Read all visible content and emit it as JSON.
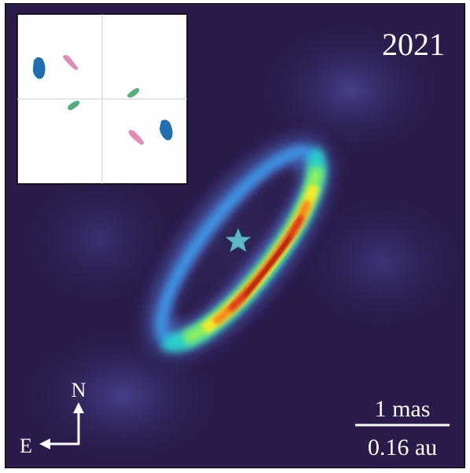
{
  "epoch_label": "2021",
  "compass": {
    "north": "N",
    "east": "E"
  },
  "scale_bar": {
    "top_label": "1 mas",
    "bottom_label": "0.16 au"
  },
  "colors": {
    "background": "#2a1b4a",
    "ring_peak": "#b0200a",
    "star": "#5bb7c9",
    "inset_blue": "#1f6fb2",
    "inset_pink": "#e08bb8",
    "inset_green": "#4fb07a"
  },
  "icons": {
    "star": "star-icon",
    "north_arrow": "arrow-up-icon",
    "east_arrow": "arrow-left-icon"
  }
}
